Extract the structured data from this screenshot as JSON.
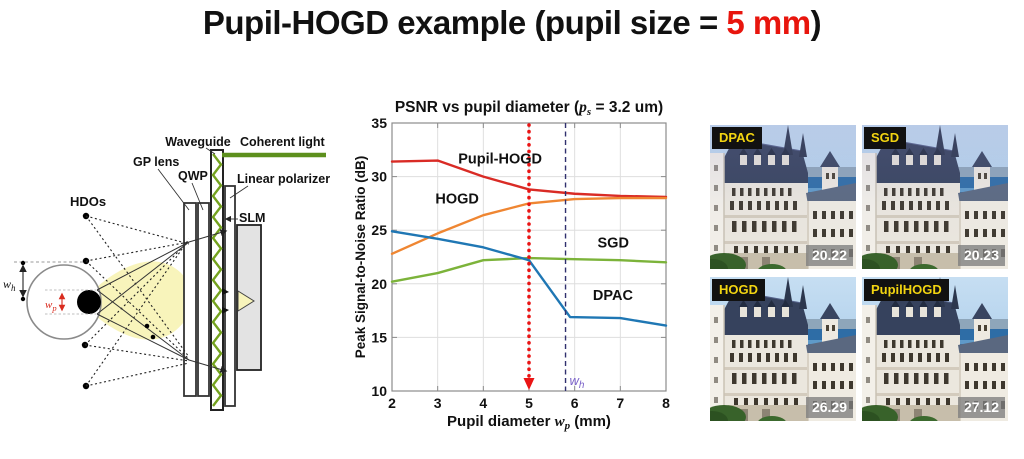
{
  "slide": {
    "title_prefix": "Pupil-HOGD example (pupil size = ",
    "title_highlight": "5 mm",
    "title_suffix": ")",
    "highlight_color": "#e8150d"
  },
  "diagram": {
    "labels": {
      "hdos": "HDOs",
      "gp_lens": "GP lens",
      "qwp": "QWP",
      "waveguide": "Waveguide",
      "coherent_light": "Coherent light",
      "linear_polarizer": "Linear polarizer",
      "slm": "SLM",
      "eye_height_base": "w",
      "eye_height_sub": "h",
      "pupil_base": "w",
      "pupil_sub": "p"
    },
    "colors": {
      "beam": "#f8f4bb",
      "waveguide_green": "#74a21e",
      "coherent_light_green": "#5d901d",
      "pupil_label_red": "#d92b1e"
    }
  },
  "chart_data": {
    "type": "line",
    "title_prefix": "PSNR vs pupil diameter (",
    "title_var": "p",
    "title_var_sub": "s",
    "title_suffix": " = 3.2 um)",
    "xlabel_prefix": "Pupil diameter ",
    "xlabel_var": "w",
    "xlabel_var_sub": "p",
    "xlabel_suffix": " (mm)",
    "ylabel": "Peak Signal-to-Noise Ratio (dB)",
    "xlim": [
      2,
      8
    ],
    "ylim": [
      10,
      35
    ],
    "xticks": [
      2,
      3,
      4,
      5,
      6,
      7,
      8
    ],
    "yticks": [
      10,
      15,
      20,
      25,
      30,
      35
    ],
    "grid": true,
    "x": [
      2,
      3,
      4,
      5,
      6,
      7,
      8
    ],
    "series": [
      {
        "name": "Pupil-HOGD",
        "color": "#d92b25",
        "y": [
          31.4,
          31.5,
          30.0,
          28.8,
          28.4,
          28.2,
          28.1
        ],
        "label_pos": [
          3.45,
          31.2
        ]
      },
      {
        "name": "HOGD",
        "color": "#ef8632",
        "y": [
          22.8,
          24.7,
          26.4,
          27.5,
          27.9,
          28.0,
          28.0
        ],
        "label_pos": [
          2.95,
          27.5
        ]
      },
      {
        "name": "SGD",
        "color": "#7cb33a",
        "y": [
          20.2,
          21.0,
          22.2,
          22.4,
          22.3,
          22.2,
          22.0
        ],
        "label_pos": [
          6.5,
          23.4
        ]
      },
      {
        "name": "DPAC",
        "color": "#1f77b4",
        "x": [
          2,
          3,
          4,
          5,
          5.9,
          7,
          8
        ],
        "y": [
          24.9,
          24.2,
          23.4,
          22.2,
          16.9,
          16.8,
          16.1
        ],
        "label_pos": [
          6.4,
          18.5
        ]
      }
    ],
    "vlines": [
      {
        "x": 5,
        "style": "dotted",
        "color": "#ea1414",
        "arrow": true
      },
      {
        "x": 5.8,
        "style": "dashed",
        "color": "#30306e",
        "label_base": "w",
        "label_sub": "h",
        "label_color": "#7b63c9"
      }
    ]
  },
  "results": {
    "items": [
      {
        "label": "DPAC",
        "psnr": "20.22"
      },
      {
        "label": "SGD",
        "psnr": "20.23"
      },
      {
        "label": "HOGD",
        "psnr": "26.29"
      },
      {
        "label": "PupilHOGD",
        "psnr": "27.12"
      }
    ],
    "label_color": "#f2d411",
    "label_bg": "#111111",
    "psnr_color": "#ffffff"
  }
}
